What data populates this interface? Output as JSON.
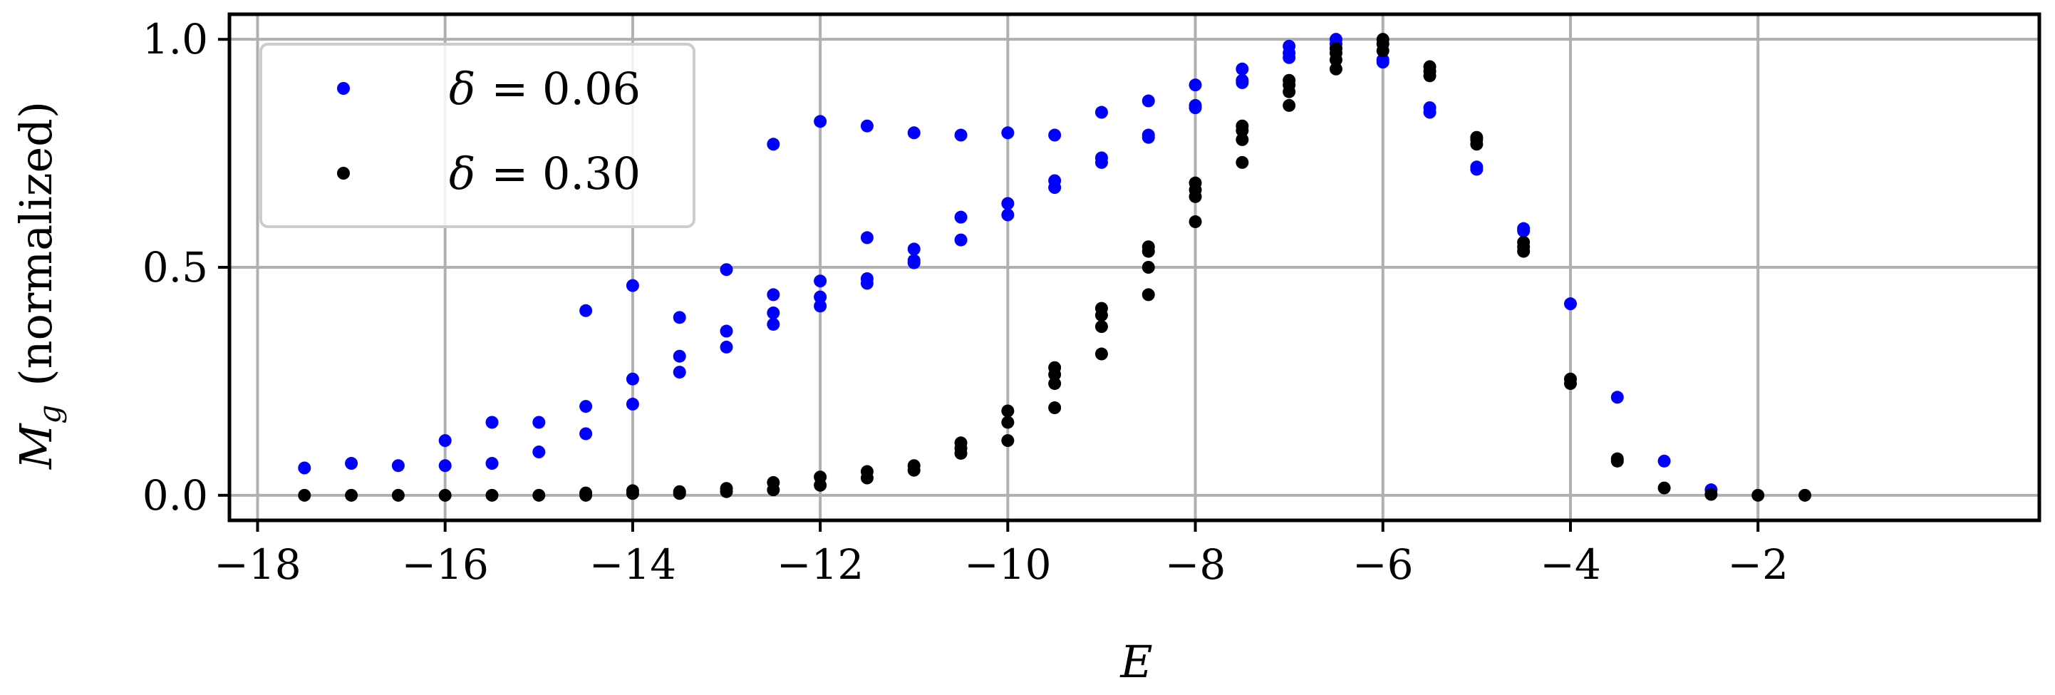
{
  "chart_data": {
    "type": "scatter",
    "xlabel": "E",
    "ylabel_symbol": "M",
    "ylabel_subscript": "g",
    "ylabel_suffix": "(normalized)",
    "xlim": [
      -18.3,
      1.0
    ],
    "ylim": [
      -0.055,
      1.055
    ],
    "xticks": [
      -18,
      -16,
      -14,
      -12,
      -10,
      -8,
      -6,
      -4,
      -2
    ],
    "xtick_labels": [
      "−18",
      "−16",
      "−14",
      "−12",
      "−10",
      "−8",
      "−6",
      "−4",
      "−2"
    ],
    "yticks": [
      0.0,
      0.5,
      1.0
    ],
    "ytick_labels": [
      "0.0",
      "0.5",
      "1.0"
    ],
    "grid": true,
    "legend_position": "top-left",
    "series": [
      {
        "name": "δ = 0.06",
        "label_symbol": "δ",
        "label_value": "= 0.06",
        "color": "#0000ff",
        "points": [
          [
            -17.5,
            0.06
          ],
          [
            -17.0,
            0.07
          ],
          [
            -16.5,
            0.065
          ],
          [
            -16.0,
            0.12
          ],
          [
            -16.0,
            0.065
          ],
          [
            -15.5,
            0.16
          ],
          [
            -15.5,
            0.07
          ],
          [
            -15.0,
            0.16
          ],
          [
            -15.0,
            0.095
          ],
          [
            -14.5,
            0.405
          ],
          [
            -14.5,
            0.195
          ],
          [
            -14.5,
            0.135
          ],
          [
            -14.0,
            0.46
          ],
          [
            -14.0,
            0.255
          ],
          [
            -14.0,
            0.2
          ],
          [
            -13.5,
            0.39
          ],
          [
            -13.5,
            0.305
          ],
          [
            -13.5,
            0.27
          ],
          [
            -13.0,
            0.495
          ],
          [
            -13.0,
            0.36
          ],
          [
            -13.0,
            0.325
          ],
          [
            -12.5,
            0.77
          ],
          [
            -12.5,
            0.44
          ],
          [
            -12.5,
            0.4
          ],
          [
            -12.5,
            0.375
          ],
          [
            -12.0,
            0.82
          ],
          [
            -12.0,
            0.47
          ],
          [
            -12.0,
            0.435
          ],
          [
            -12.0,
            0.415
          ],
          [
            -11.5,
            0.81
          ],
          [
            -11.5,
            0.565
          ],
          [
            -11.5,
            0.475
          ],
          [
            -11.5,
            0.465
          ],
          [
            -11.0,
            0.795
          ],
          [
            -11.0,
            0.54
          ],
          [
            -11.0,
            0.515
          ],
          [
            -11.0,
            0.51
          ],
          [
            -10.5,
            0.79
          ],
          [
            -10.5,
            0.61
          ],
          [
            -10.5,
            0.56
          ],
          [
            -10.0,
            0.795
          ],
          [
            -10.0,
            0.64
          ],
          [
            -10.0,
            0.615
          ],
          [
            -9.5,
            0.79
          ],
          [
            -9.5,
            0.69
          ],
          [
            -9.5,
            0.675
          ],
          [
            -9.0,
            0.84
          ],
          [
            -9.0,
            0.74
          ],
          [
            -9.0,
            0.73
          ],
          [
            -8.5,
            0.865
          ],
          [
            -8.5,
            0.79
          ],
          [
            -8.5,
            0.785
          ],
          [
            -8.0,
            0.9
          ],
          [
            -8.0,
            0.855
          ],
          [
            -8.0,
            0.85
          ],
          [
            -7.5,
            0.935
          ],
          [
            -7.5,
            0.91
          ],
          [
            -7.5,
            0.905
          ],
          [
            -7.0,
            0.985
          ],
          [
            -7.0,
            0.97
          ],
          [
            -7.0,
            0.96
          ],
          [
            -6.5,
            1.0
          ],
          [
            -6.5,
            0.99
          ],
          [
            -6.5,
            0.98
          ],
          [
            -6.0,
            0.955
          ],
          [
            -6.0,
            0.95
          ],
          [
            -5.5,
            0.85
          ],
          [
            -5.5,
            0.84
          ],
          [
            -5.0,
            0.72
          ],
          [
            -5.0,
            0.715
          ],
          [
            -4.5,
            0.585
          ],
          [
            -4.5,
            0.58
          ],
          [
            -4.0,
            0.42
          ],
          [
            -3.5,
            0.215
          ],
          [
            -3.0,
            0.075
          ],
          [
            -2.5,
            0.012
          ]
        ]
      },
      {
        "name": "δ = 0.30",
        "label_symbol": "δ",
        "label_value": "= 0.30",
        "color": "#000000",
        "points": [
          [
            -17.5,
            0.0
          ],
          [
            -17.0,
            0.0
          ],
          [
            -16.5,
            0.0
          ],
          [
            -16.0,
            0.0
          ],
          [
            -15.5,
            0.0
          ],
          [
            -15.0,
            0.0
          ],
          [
            -14.5,
            0.005
          ],
          [
            -14.5,
            0.0
          ],
          [
            -14.0,
            0.01
          ],
          [
            -14.0,
            0.004
          ],
          [
            -13.5,
            0.008
          ],
          [
            -13.5,
            0.004
          ],
          [
            -13.0,
            0.015
          ],
          [
            -13.0,
            0.008
          ],
          [
            -12.5,
            0.028
          ],
          [
            -12.5,
            0.012
          ],
          [
            -12.0,
            0.04
          ],
          [
            -12.0,
            0.022
          ],
          [
            -11.5,
            0.052
          ],
          [
            -11.5,
            0.038
          ],
          [
            -11.0,
            0.065
          ],
          [
            -11.0,
            0.055
          ],
          [
            -10.5,
            0.115
          ],
          [
            -10.5,
            0.103
          ],
          [
            -10.5,
            0.092
          ],
          [
            -10.0,
            0.185
          ],
          [
            -10.0,
            0.16
          ],
          [
            -10.0,
            0.12
          ],
          [
            -9.5,
            0.28
          ],
          [
            -9.5,
            0.265
          ],
          [
            -9.5,
            0.245
          ],
          [
            -9.5,
            0.192
          ],
          [
            -9.0,
            0.41
          ],
          [
            -9.0,
            0.395
          ],
          [
            -9.0,
            0.37
          ],
          [
            -9.0,
            0.31
          ],
          [
            -8.5,
            0.545
          ],
          [
            -8.5,
            0.535
          ],
          [
            -8.5,
            0.5
          ],
          [
            -8.5,
            0.44
          ],
          [
            -8.0,
            0.685
          ],
          [
            -8.0,
            0.67
          ],
          [
            -8.0,
            0.655
          ],
          [
            -8.0,
            0.6
          ],
          [
            -7.5,
            0.81
          ],
          [
            -7.5,
            0.8
          ],
          [
            -7.5,
            0.78
          ],
          [
            -7.5,
            0.73
          ],
          [
            -7.0,
            0.91
          ],
          [
            -7.0,
            0.9
          ],
          [
            -7.0,
            0.885
          ],
          [
            -7.0,
            0.855
          ],
          [
            -6.5,
            0.98
          ],
          [
            -6.5,
            0.97
          ],
          [
            -6.5,
            0.955
          ],
          [
            -6.5,
            0.935
          ],
          [
            -6.0,
            1.0
          ],
          [
            -6.0,
            0.99
          ],
          [
            -6.0,
            0.975
          ],
          [
            -5.5,
            0.94
          ],
          [
            -5.5,
            0.93
          ],
          [
            -5.5,
            0.92
          ],
          [
            -5.0,
            0.785
          ],
          [
            -5.0,
            0.78
          ],
          [
            -5.0,
            0.77
          ],
          [
            -4.5,
            0.555
          ],
          [
            -4.5,
            0.545
          ],
          [
            -4.5,
            0.535
          ],
          [
            -4.0,
            0.255
          ],
          [
            -4.0,
            0.245
          ],
          [
            -3.5,
            0.08
          ],
          [
            -3.5,
            0.075
          ],
          [
            -3.0,
            0.016
          ],
          [
            -2.5,
            0.002
          ],
          [
            -2.0,
            0.0
          ],
          [
            -1.5,
            0.0
          ]
        ]
      }
    ]
  }
}
